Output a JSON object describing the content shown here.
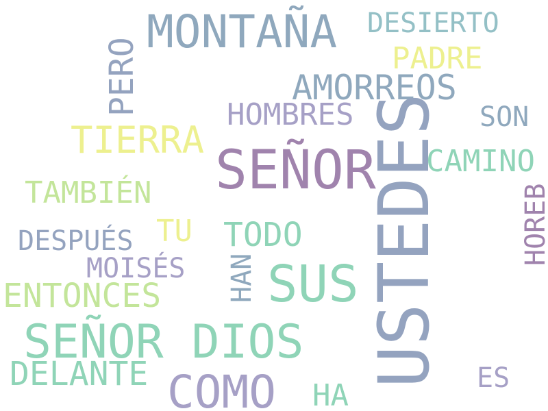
{
  "palette": {
    "blue_gray": "#8fa8bd",
    "slate": "#94a3bf",
    "lavender": "#a6a0c6",
    "purple": "#a083ad",
    "mint": "#8fd4b7",
    "lime": "#c3e59a",
    "yellow": "#edf08f",
    "teal_gray": "#94c0c6"
  },
  "words": {
    "usted": "USTEDES",
    "senor": "SEÑOR",
    "senor_dios": "SEÑOR DIOS",
    "montana": "MONTAÑA",
    "sus": "SUS",
    "como": "COMO",
    "tierra": "TIERRA",
    "amorreos": "AMORREOS",
    "hombres": "HOMBRES",
    "pero": "PERO",
    "desierto": "DESIERTO",
    "padre": "PADRE",
    "son": "SON",
    "camino": "CAMINO",
    "tambien": "TAMBIÉN",
    "todo": "TODO",
    "tu": "TU",
    "despues": "DESPUÉS",
    "moises": "MOISÉS",
    "entonces": "ENTONCES",
    "han": "HAN",
    "horeb": "HOREB",
    "delante": "DELANTE",
    "es": "ES",
    "ha": "HA"
  }
}
